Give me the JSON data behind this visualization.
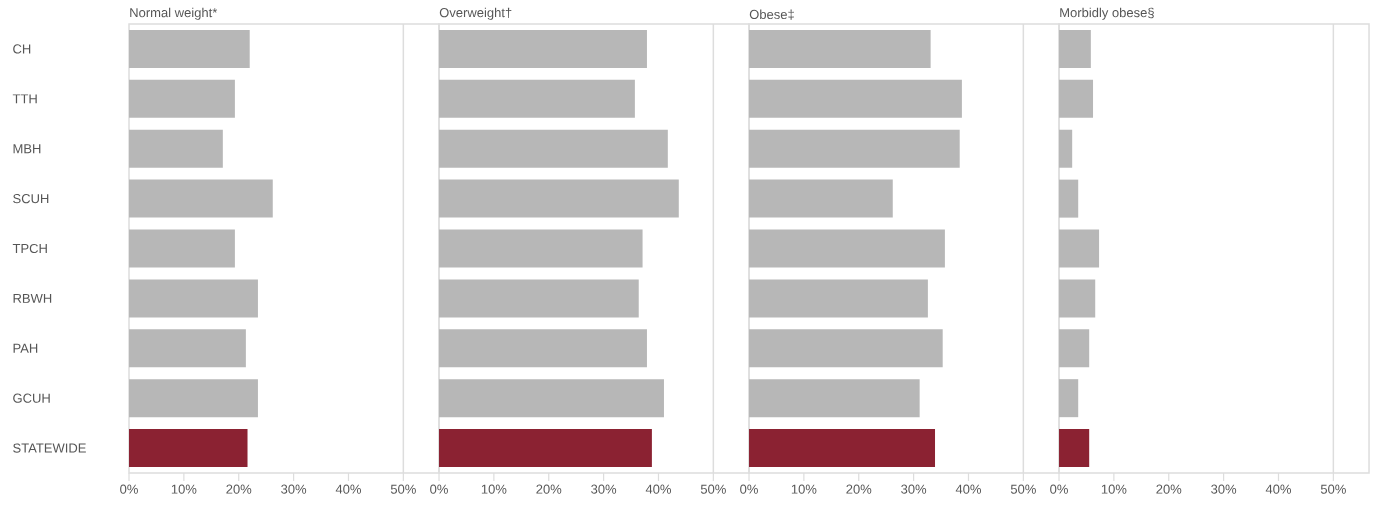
{
  "chart_data": [
    {
      "type": "bar",
      "orientation": "horizontal",
      "title": "Normal weight*",
      "categories": [
        "CH",
        "TTH",
        "MBH",
        "SCUH",
        "TPCH",
        "RBWH",
        "PAH",
        "GCUH",
        "STATEWIDE"
      ],
      "values": [
        22.0,
        19.3,
        17.1,
        26.2,
        19.3,
        23.5,
        21.3,
        23.5,
        21.6
      ],
      "colors": [
        "#b7b7b7",
        "#b7b7b7",
        "#b7b7b7",
        "#b7b7b7",
        "#b7b7b7",
        "#b7b7b7",
        "#b7b7b7",
        "#b7b7b7",
        "#8b2232"
      ],
      "xlim": [
        0,
        56.5
      ],
      "xticks": [
        {
          "value": 0,
          "label": "0%"
        },
        {
          "value": 10,
          "label": "10%"
        },
        {
          "value": 20,
          "label": "20%"
        },
        {
          "value": 30,
          "label": "30%"
        },
        {
          "value": 40,
          "label": "40%"
        },
        {
          "value": 50,
          "label": "50%"
        }
      ],
      "ref_lines": [
        {
          "axis": "x",
          "value": 50,
          "color": "#dddddd"
        }
      ]
    },
    {
      "type": "bar",
      "orientation": "horizontal",
      "title": "Overweight†",
      "tick_labels": "x",
      "values": [
        37.9,
        35.7,
        41.7,
        43.7,
        37.1,
        36.4,
        37.9,
        41.0,
        38.8
      ],
      "colors": [
        "#b7b7b7",
        "#b7b7b7",
        "#b7b7b7",
        "#b7b7b7",
        "#b7b7b7",
        "#b7b7b7",
        "#b7b7b7",
        "#b7b7b7",
        "#8b2232"
      ],
      "xlim": [
        0,
        56.5
      ],
      "xticks": [
        {
          "value": 0,
          "label": "0%"
        },
        {
          "value": 10,
          "label": "10%"
        },
        {
          "value": 20,
          "label": "20%"
        },
        {
          "value": 30,
          "label": "30%"
        },
        {
          "value": 40,
          "label": "40%"
        },
        {
          "value": 50,
          "label": "50%"
        }
      ],
      "ref_lines": [
        {
          "axis": "x",
          "value": 50,
          "color": "#dddddd"
        }
      ]
    },
    {
      "type": "bar",
      "orientation": "horizontal",
      "title": "Obese‡",
      "tick_labels": "x",
      "values": [
        33.1,
        38.8,
        38.4,
        26.2,
        35.7,
        32.6,
        35.3,
        31.1,
        33.9
      ],
      "colors": [
        "#b7b7b7",
        "#b7b7b7",
        "#b7b7b7",
        "#b7b7b7",
        "#b7b7b7",
        "#b7b7b7",
        "#b7b7b7",
        "#b7b7b7",
        "#8b2232"
      ],
      "xlim": [
        0,
        56.5
      ],
      "xticks": [
        {
          "value": 0,
          "label": "0%"
        },
        {
          "value": 10,
          "label": "10%"
        },
        {
          "value": 20,
          "label": "20%"
        },
        {
          "value": 30,
          "label": "30%"
        },
        {
          "value": 40,
          "label": "40%"
        },
        {
          "value": 50,
          "label": "50%"
        }
      ],
      "ref_lines": [
        {
          "axis": "x",
          "value": 50,
          "color": "#dddddd"
        }
      ]
    },
    {
      "type": "bar",
      "orientation": "horizontal",
      "title": "Morbidly obese§",
      "tick_labels": "x",
      "values": [
        5.8,
        6.2,
        2.4,
        3.5,
        7.3,
        6.6,
        5.5,
        3.5,
        5.5
      ],
      "colors": [
        "#b7b7b7",
        "#b7b7b7",
        "#b7b7b7",
        "#b7b7b7",
        "#b7b7b7",
        "#b7b7b7",
        "#b7b7b7",
        "#b7b7b7",
        "#8b2232"
      ],
      "xlim": [
        0,
        56.5
      ],
      "xticks": [
        {
          "value": 0,
          "label": "0%"
        },
        {
          "value": 10,
          "label": "10%"
        },
        {
          "value": 20,
          "label": "20%"
        },
        {
          "value": 30,
          "label": "30%"
        },
        {
          "value": 40,
          "label": "40%"
        },
        {
          "value": 50,
          "label": "50%"
        }
      ],
      "ref_lines": [
        {
          "axis": "x",
          "value": 50,
          "color": "#dddddd"
        }
      ]
    }
  ]
}
